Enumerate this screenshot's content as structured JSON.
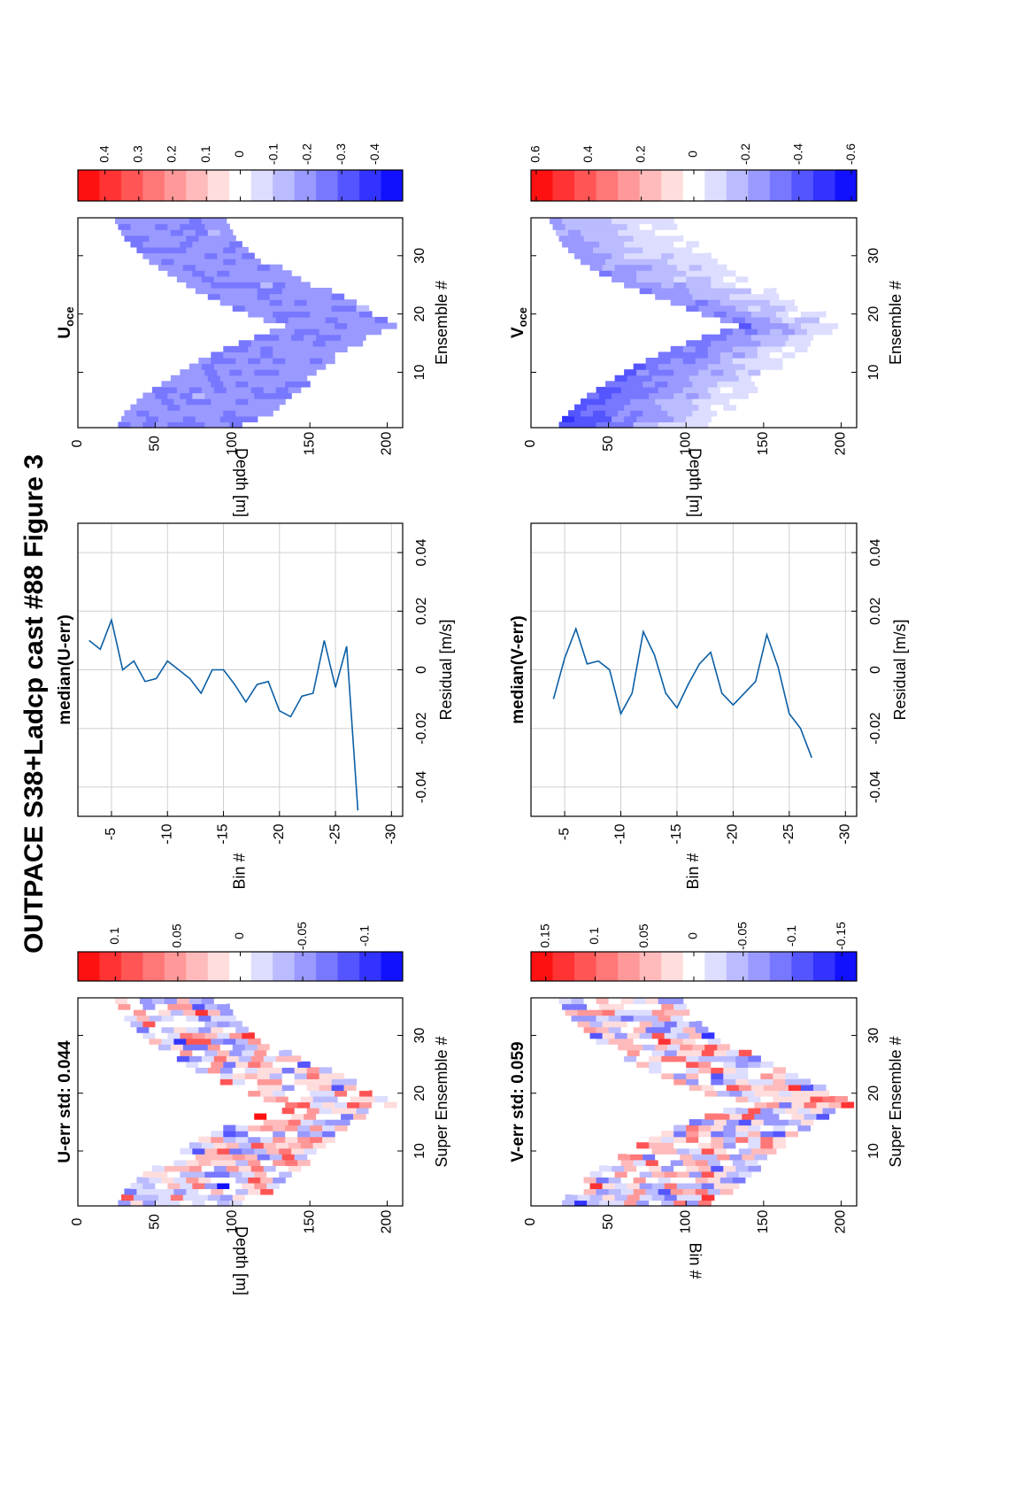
{
  "figure_title": "OUTPACE S38+Ladcp cast #88  Figure 3",
  "colors": {
    "neg_extreme": "#0000ff",
    "pos_extreme": "#ff0000",
    "mid": "#ffffff",
    "line": "#0b5fa5",
    "grid": "#d0d0d0"
  },
  "chart_data": [
    {
      "type": "heatmap",
      "title": "U-err std: 0.044",
      "xlabel": "Super Ensemble #",
      "ylabel": "Depth [m]",
      "xticks": [
        "10",
        "20",
        "30"
      ],
      "yticks": [
        "0",
        "50",
        "100",
        "150",
        "200"
      ],
      "xlim": [
        1,
        36
      ],
      "ylim": [
        0,
        210
      ],
      "ensembles": 36,
      "bins": 27,
      "bin_size_m": 8,
      "top_depth_m": [
        26,
        28,
        30,
        34,
        38,
        42,
        48,
        54,
        60,
        66,
        72,
        78,
        86,
        94,
        104,
        114,
        124,
        134,
        120,
        110,
        100,
        92,
        84,
        76,
        70,
        64,
        58,
        52,
        46,
        42,
        38,
        34,
        30,
        28,
        26,
        24
      ],
      "bottom_depth_m": [
        104,
        112,
        120,
        128,
        132,
        136,
        140,
        144,
        148,
        152,
        156,
        160,
        166,
        172,
        178,
        184,
        190,
        200,
        196,
        190,
        182,
        174,
        166,
        158,
        150,
        142,
        134,
        126,
        118,
        112,
        106,
        102,
        98,
        96,
        94,
        92
      ],
      "pattern": "noise",
      "seed": 11,
      "scale": 0.085,
      "center": 0.0,
      "colorbar": {
        "ticks": [
          "0.1",
          "0.05",
          "0",
          "-0.05",
          "-0.1"
        ],
        "tick_values": [
          0.1,
          0.05,
          0,
          -0.05,
          -0.1
        ],
        "clim": [
          -0.13,
          0.13
        ],
        "levels": 15
      }
    },
    {
      "type": "line",
      "title": "median(U-err)",
      "xlabel": "Residual [m/s]",
      "ylabel": "Bin #",
      "xticks": [
        "-0.04",
        "-0.02",
        "0",
        "0.02",
        "0.04"
      ],
      "yticks": [
        "-5",
        "-10",
        "-15",
        "-20",
        "-25",
        "-30"
      ],
      "xlim": [
        -0.05,
        0.05
      ],
      "ylim": [
        -31,
        -2
      ],
      "bins": [
        -3,
        -4,
        -5,
        -6,
        -7,
        -8,
        -9,
        -10,
        -11,
        -12,
        -13,
        -14,
        -15,
        -16,
        -17,
        -18,
        -19,
        -20,
        -21,
        -22,
        -23,
        -24,
        -25,
        -26,
        -27
      ],
      "values": [
        0.01,
        0.007,
        0.017,
        0.0,
        0.003,
        -0.004,
        -0.003,
        0.003,
        0.0,
        -0.003,
        -0.008,
        0.0,
        0.0,
        -0.005,
        -0.011,
        -0.005,
        -0.004,
        -0.014,
        -0.016,
        -0.009,
        -0.008,
        0.01,
        -0.006,
        0.008,
        -0.048
      ],
      "grid": true
    },
    {
      "type": "heatmap",
      "title": "U",
      "title_sub": "oce",
      "xlabel": "Ensemble #",
      "ylabel": "Depth [m]",
      "xticks": [
        "10",
        "20",
        "30"
      ],
      "yticks": [
        "0",
        "50",
        "100",
        "150",
        "200"
      ],
      "xlim": [
        1,
        36
      ],
      "ylim": [
        0,
        210
      ],
      "ensembles": 36,
      "bins": 27,
      "bin_size_m": 8,
      "top_depth_m": [
        26,
        28,
        30,
        34,
        38,
        42,
        48,
        54,
        60,
        66,
        72,
        78,
        86,
        94,
        104,
        114,
        124,
        134,
        120,
        110,
        100,
        92,
        84,
        76,
        70,
        64,
        58,
        52,
        46,
        42,
        38,
        34,
        30,
        28,
        26,
        24
      ],
      "bottom_depth_m": [
        104,
        112,
        120,
        128,
        132,
        136,
        140,
        144,
        148,
        152,
        156,
        160,
        166,
        172,
        178,
        184,
        190,
        200,
        196,
        190,
        182,
        174,
        166,
        158,
        150,
        142,
        134,
        126,
        118,
        112,
        106,
        102,
        98,
        96,
        94,
        92
      ],
      "pattern": "smooth-negative",
      "seed": 23,
      "scale": 0.07,
      "center": -0.21,
      "colorbar": {
        "ticks": [
          "0.4",
          "0.3",
          "0.2",
          "0.1",
          "0",
          "-0.1",
          "-0.2",
          "-0.3",
          "-0.4"
        ],
        "tick_values": [
          0.4,
          0.3,
          0.2,
          0.1,
          0,
          -0.1,
          -0.2,
          -0.3,
          -0.4
        ],
        "clim": [
          -0.48,
          0.48
        ],
        "levels": 15
      }
    },
    {
      "type": "heatmap",
      "title": "V-err std: 0.059",
      "xlabel": "Super Ensemble #",
      "ylabel": "Bin #",
      "xticks": [
        "10",
        "20",
        "30"
      ],
      "yticks": [
        "0",
        "50",
        "100",
        "150",
        "200"
      ],
      "xlim": [
        1,
        36
      ],
      "ylim": [
        0,
        210
      ],
      "ensembles": 36,
      "bins": 27,
      "bin_size_m": 8,
      "top_depth_m": [
        20,
        22,
        26,
        30,
        34,
        38,
        44,
        50,
        56,
        62,
        68,
        76,
        84,
        92,
        102,
        112,
        124,
        136,
        124,
        112,
        102,
        92,
        84,
        76,
        68,
        60,
        54,
        48,
        42,
        38,
        34,
        30,
        26,
        22,
        20,
        18
      ],
      "bottom_depth_m": [
        110,
        118,
        124,
        130,
        134,
        138,
        142,
        146,
        150,
        154,
        158,
        162,
        168,
        174,
        180,
        186,
        194,
        204,
        198,
        192,
        184,
        176,
        168,
        160,
        152,
        144,
        136,
        128,
        120,
        114,
        108,
        104,
        100,
        98,
        96,
        94
      ],
      "pattern": "noise",
      "seed": 37,
      "scale": 0.11,
      "center": 0.0,
      "colorbar": {
        "ticks": [
          "0.15",
          "0.1",
          "0.05",
          "0",
          "-0.05",
          "-0.1",
          "-0.15"
        ],
        "tick_values": [
          0.15,
          0.1,
          0.05,
          0,
          -0.05,
          -0.1,
          -0.15
        ],
        "clim": [
          -0.165,
          0.165
        ],
        "levels": 15
      }
    },
    {
      "type": "line",
      "title": "median(V-err)",
      "xlabel": "Residual [m/s]",
      "ylabel": "Bin #",
      "xticks": [
        "-0.04",
        "-0.02",
        "0",
        "0.02",
        "0.04"
      ],
      "yticks": [
        "-5",
        "-10",
        "-15",
        "-20",
        "-25",
        "-30"
      ],
      "xlim": [
        -0.05,
        0.05
      ],
      "ylim": [
        -31,
        -2
      ],
      "bins": [
        -4,
        -5,
        -6,
        -7,
        -8,
        -9,
        -10,
        -11,
        -12,
        -13,
        -14,
        -15,
        -16,
        -17,
        -18,
        -19,
        -20,
        -21,
        -22,
        -23,
        -24,
        -25,
        -26,
        -27
      ],
      "values": [
        -0.01,
        0.004,
        0.014,
        0.002,
        0.003,
        0.0,
        -0.015,
        -0.008,
        0.013,
        0.005,
        -0.008,
        -0.013,
        -0.005,
        0.002,
        0.006,
        -0.008,
        -0.012,
        -0.008,
        -0.004,
        0.012,
        0.001,
        -0.015,
        -0.02,
        -0.03
      ],
      "grid": true
    },
    {
      "type": "heatmap",
      "title": "V",
      "title_sub": "oce",
      "xlabel": "Ensemble #",
      "ylabel": "Depth [m]",
      "xticks": [
        "10",
        "20",
        "30"
      ],
      "yticks": [
        "0",
        "50",
        "100",
        "150",
        "200"
      ],
      "xlim": [
        1,
        36
      ],
      "ylim": [
        0,
        210
      ],
      "ensembles": 36,
      "bins": 27,
      "bin_size_m": 8,
      "top_depth_m": [
        18,
        20,
        24,
        28,
        32,
        36,
        42,
        48,
        54,
        60,
        66,
        74,
        82,
        90,
        100,
        110,
        122,
        134,
        122,
        110,
        100,
        90,
        80,
        70,
        60,
        52,
        44,
        38,
        32,
        28,
        24,
        20,
        18,
        16,
        14,
        12
      ],
      "bottom_depth_m": [
        108,
        116,
        122,
        128,
        132,
        136,
        140,
        144,
        148,
        152,
        156,
        160,
        166,
        172,
        178,
        184,
        192,
        202,
        196,
        190,
        182,
        174,
        166,
        158,
        150,
        142,
        134,
        126,
        118,
        112,
        106,
        102,
        98,
        96,
        94,
        92
      ],
      "pattern": "v-gradient",
      "seed": 51,
      "scale": 0.09,
      "center": -0.2,
      "colorbar": {
        "ticks": [
          "0.6",
          "0.4",
          "0.2",
          "0",
          "-0.2",
          "-0.4",
          "-0.6"
        ],
        "tick_values": [
          0.6,
          0.4,
          0.2,
          0,
          -0.2,
          -0.4,
          -0.6
        ],
        "clim": [
          -0.62,
          0.62
        ],
        "levels": 15
      }
    }
  ]
}
